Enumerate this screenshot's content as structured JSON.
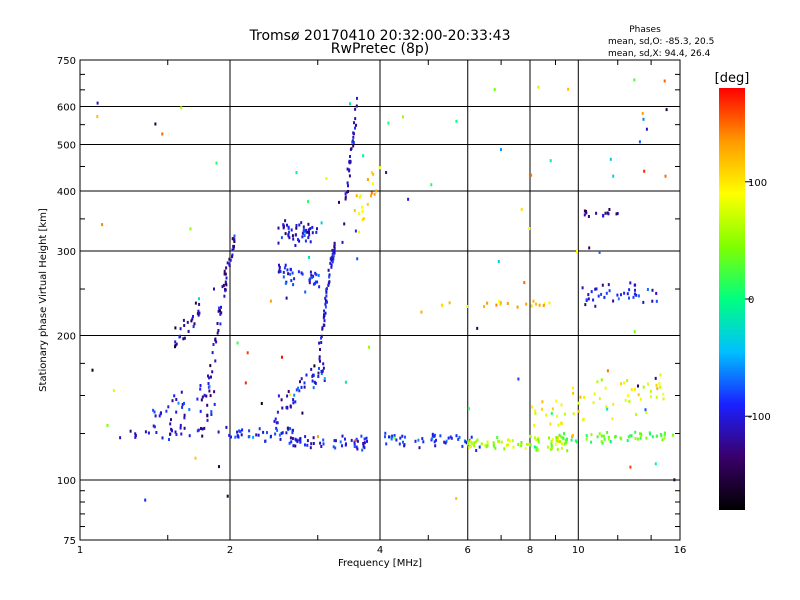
{
  "header": {
    "title_line1": "Tromsø 20170410 20:32:00-20:33:43",
    "title_line2": "RwPretec (8p)"
  },
  "stats": {
    "heading": "Phases",
    "line_o": "mean, sd,O: -85.3, 20.5",
    "line_x": "mean, sd,X:  94.4, 26.4"
  },
  "colorbar": {
    "unit_label": "[deg]",
    "ticks": [
      {
        "value": 100,
        "label": "100"
      },
      {
        "value": 0,
        "label": "0"
      },
      {
        "value": -100,
        "label": "-100"
      }
    ],
    "range": [
      -180,
      180
    ],
    "colors": [
      "#000000",
      "#3a006a",
      "#1a20ff",
      "#00c0ff",
      "#00ff80",
      "#80ff00",
      "#ffff00",
      "#ff9900",
      "#ff0000"
    ]
  },
  "chart_data": {
    "type": "scatter",
    "xlabel": "Frequency [MHz]",
    "ylabel": "Stationary phase Virtual Height [km]",
    "xscale": "log",
    "yscale": "log",
    "xlim": [
      1,
      16
    ],
    "ylim": [
      75,
      750
    ],
    "xticks": [
      1,
      2,
      4,
      6,
      8,
      10,
      16
    ],
    "xtick_labels": [
      "1",
      "2",
      "4",
      "6",
      "8",
      "10",
      "16"
    ],
    "yticks": [
      75,
      100,
      200,
      300,
      400,
      500,
      600,
      750
    ],
    "ytick_labels": [
      "75",
      "100",
      "200",
      "300",
      "400",
      "500",
      "600",
      "750"
    ],
    "grid": true,
    "color_quantity": "phase [deg]",
    "clusters": [
      {
        "f_start": 1.2,
        "f_end": 2.1,
        "h_start": 125,
        "h_end": 125,
        "count": 30,
        "phase": -110,
        "spread": 4
      },
      {
        "f_start": 1.4,
        "f_end": 1.9,
        "h_start": 135,
        "h_end": 150,
        "count": 40,
        "phase": -105,
        "spread": 10
      },
      {
        "f_start": 1.55,
        "f_end": 1.75,
        "h_start": 190,
        "h_end": 230,
        "count": 25,
        "phase": -130,
        "spread": 12
      },
      {
        "f_start": 1.8,
        "f_end": 2.05,
        "h_start": 145,
        "h_end": 320,
        "count": 60,
        "phase": -115,
        "spread": 15
      },
      {
        "f_start": 2.0,
        "f_end": 2.7,
        "h_start": 125,
        "h_end": 128,
        "count": 40,
        "phase": -95,
        "spread": 4
      },
      {
        "f_start": 2.5,
        "f_end": 3.0,
        "h_start": 330,
        "h_end": 325,
        "count": 50,
        "phase": -105,
        "spread": 15
      },
      {
        "f_start": 2.5,
        "f_end": 3.05,
        "h_start": 270,
        "h_end": 260,
        "count": 40,
        "phase": -90,
        "spread": 12
      },
      {
        "f_start": 2.45,
        "f_end": 3.1,
        "h_start": 136,
        "h_end": 170,
        "count": 45,
        "phase": -95,
        "spread": 8
      },
      {
        "f_start": 3.0,
        "f_end": 3.25,
        "h_start": 165,
        "h_end": 310,
        "count": 60,
        "phase": -110,
        "spread": 12
      },
      {
        "f_start": 3.35,
        "f_end": 3.6,
        "h_start": 300,
        "h_end": 600,
        "count": 35,
        "phase": -110,
        "spread": 30
      },
      {
        "f_start": 2.6,
        "f_end": 3.8,
        "h_start": 120,
        "h_end": 120,
        "count": 55,
        "phase": -100,
        "spread": 3
      },
      {
        "f_start": 3.5,
        "f_end": 4.0,
        "h_start": 340,
        "h_end": 420,
        "count": 20,
        "phase": 110,
        "spread": 30
      },
      {
        "f_start": 4.0,
        "f_end": 6.5,
        "h_start": 122,
        "h_end": 120,
        "count": 50,
        "phase": -85,
        "spread": 4
      },
      {
        "f_start": 6.0,
        "f_end": 9.5,
        "h_start": 120,
        "h_end": 119,
        "count": 70,
        "phase": 60,
        "spread": 3
      },
      {
        "f_start": 9.0,
        "f_end": 15.5,
        "h_start": 121,
        "h_end": 124,
        "count": 60,
        "phase": 30,
        "spread": 3
      },
      {
        "f_start": 8.0,
        "f_end": 15.0,
        "h_start": 135,
        "h_end": 155,
        "count": 60,
        "phase": 90,
        "spread": 15
      },
      {
        "f_start": 10.2,
        "f_end": 14.5,
        "h_start": 240,
        "h_end": 245,
        "count": 40,
        "phase": -95,
        "spread": 10
      },
      {
        "f_start": 10.3,
        "f_end": 12.0,
        "h_start": 360,
        "h_end": 360,
        "count": 14,
        "phase": -120,
        "spread": 5
      },
      {
        "f_start": 5.0,
        "f_end": 9.0,
        "h_start": 233,
        "h_end": 233,
        "count": 20,
        "phase": 120,
        "spread": 3
      },
      {
        "f_start": 1.0,
        "f_end": 16.0,
        "h_start": 90,
        "h_end": 700,
        "count": 90,
        "phase": 0,
        "spread": 0,
        "random": true
      }
    ]
  }
}
